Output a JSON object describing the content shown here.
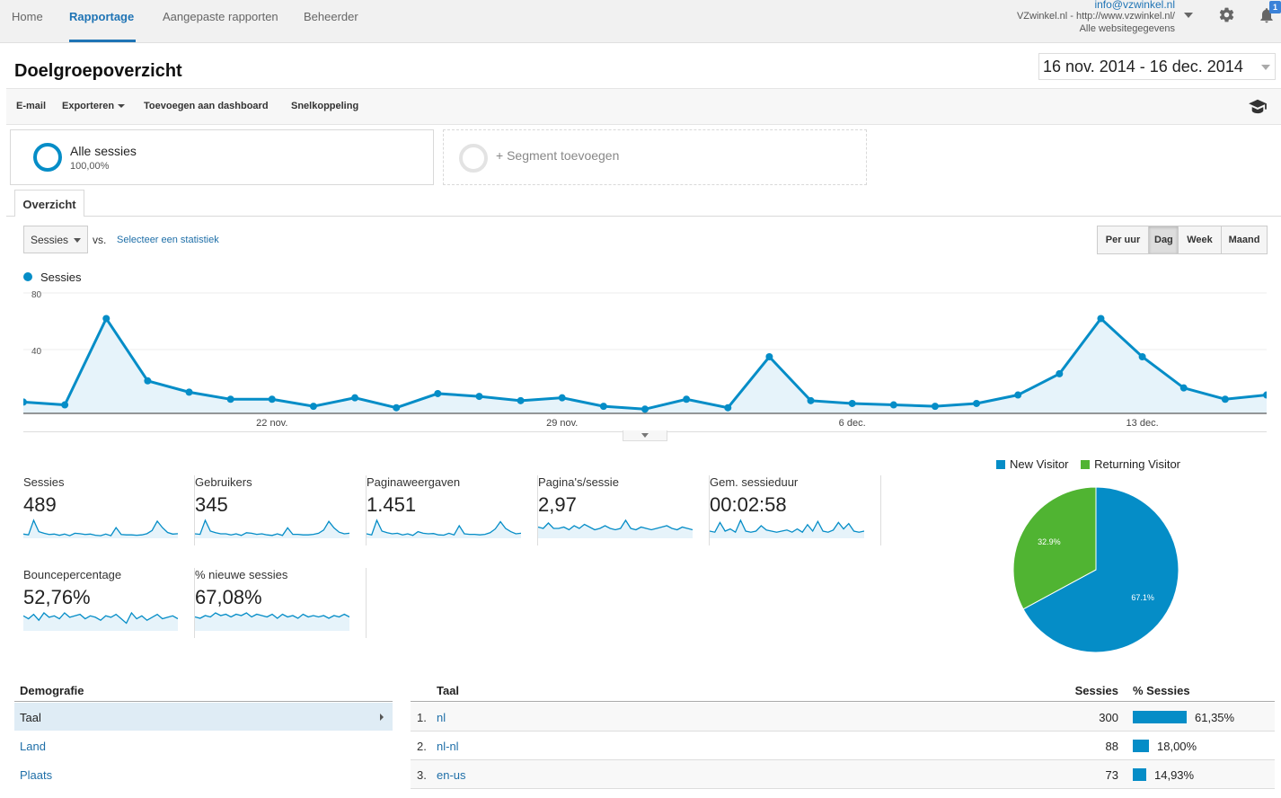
{
  "nav": {
    "items": [
      "Home",
      "Rapportage",
      "Aangepaste rapporten",
      "Beheerder"
    ],
    "active": "Rapportage"
  },
  "account": {
    "email": "info@vzwinkel.nl",
    "site": "VZwinkel.nl - http://www.vzwinkel.nl/",
    "view": "Alle websitegegevens",
    "notification_count": "1"
  },
  "page": {
    "title": "Doelgroepoverzicht",
    "date_range": "16 nov. 2014 - 16 dec. 2014"
  },
  "actions": {
    "email": "E-mail",
    "export": "Exporteren",
    "add_dashboard": "Toevoegen aan dashboard",
    "shortcut": "Snelkoppeling"
  },
  "segments": {
    "all_label": "Alle sessies",
    "all_pct": "100,00%",
    "add_label": "+ Segment toevoegen"
  },
  "tab": {
    "overview": "Overzicht"
  },
  "controls": {
    "metric": "Sessies",
    "vs": "vs.",
    "select_stat": "Selecteer een statistiek",
    "granularity": [
      "Per uur",
      "Dag",
      "Week",
      "Maand"
    ],
    "granularity_selected": "Dag"
  },
  "chart_data": [
    {
      "type": "line",
      "series": [
        {
          "name": "Sessies",
          "values": [
            8,
            6,
            67,
            23,
            15,
            10,
            10,
            5,
            11,
            4,
            14,
            12,
            9,
            11,
            5,
            3,
            10,
            4,
            40,
            9,
            7,
            6,
            5,
            7,
            13,
            28,
            67,
            40,
            18,
            10,
            13
          ]
        }
      ],
      "x_labels": [
        "22 nov.",
        "29 nov.",
        "6 dec.",
        "13 dec."
      ],
      "y_ticks": [
        "40",
        "80"
      ],
      "ylim": [
        0,
        80
      ],
      "color": "#058dc7",
      "legend": "top-left",
      "grid": true
    },
    {
      "type": "pie",
      "labels": [
        "New Visitor",
        "Returning Visitor"
      ],
      "values": [
        67.1,
        32.9
      ],
      "value_labels": [
        "67.1%",
        "32.9%"
      ],
      "colors": [
        "#058dc7",
        "#50b432"
      ],
      "legend": "top"
    }
  ],
  "metrics": [
    {
      "label": "Sessies",
      "value": "489",
      "spark": [
        6,
        4,
        40,
        12,
        8,
        5,
        6,
        3,
        6,
        2,
        8,
        7,
        5,
        6,
        3,
        2,
        6,
        2,
        22,
        5,
        4,
        4,
        3,
        4,
        7,
        15,
        38,
        22,
        10,
        6,
        7
      ]
    },
    {
      "label": "Gebruikers",
      "value": "345",
      "spark": [
        5,
        4,
        30,
        10,
        7,
        5,
        5,
        3,
        5,
        2,
        7,
        6,
        4,
        5,
        3,
        2,
        5,
        2,
        16,
        4,
        4,
        3,
        3,
        4,
        6,
        12,
        28,
        16,
        8,
        5,
        6
      ]
    },
    {
      "label": "Paginaweergaven",
      "value": "1.451",
      "spark": [
        10,
        6,
        60,
        20,
        14,
        10,
        12,
        6,
        10,
        4,
        18,
        12,
        10,
        11,
        6,
        5,
        12,
        6,
        40,
        10,
        8,
        8,
        6,
        8,
        14,
        28,
        55,
        30,
        18,
        10,
        12
      ]
    },
    {
      "label": "Pagina's/sessie",
      "value": "2,97",
      "spark": [
        14,
        12,
        20,
        12,
        12,
        14,
        10,
        16,
        12,
        18,
        14,
        10,
        12,
        16,
        12,
        10,
        12,
        24,
        12,
        10,
        14,
        12,
        10,
        12,
        14,
        16,
        12,
        10,
        14,
        12,
        10
      ]
    },
    {
      "label": "Gem. sessieduur",
      "value": "00:02:58",
      "spark": [
        10,
        8,
        26,
        10,
        14,
        8,
        30,
        10,
        8,
        10,
        20,
        12,
        10,
        8,
        10,
        12,
        8,
        14,
        8,
        22,
        10,
        28,
        10,
        8,
        12,
        26,
        14,
        24,
        10,
        8,
        10
      ]
    },
    {
      "label": "Bouncepercentage",
      "value": "52,76%",
      "spark": [
        18,
        14,
        20,
        12,
        22,
        16,
        18,
        14,
        22,
        16,
        18,
        20,
        14,
        18,
        16,
        12,
        18,
        16,
        20,
        14,
        8,
        22,
        14,
        18,
        12,
        16,
        20,
        14,
        16,
        18,
        14
      ]
    },
    {
      "label": "% nieuwe sessies",
      "value": "67,08%",
      "spark": [
        18,
        16,
        20,
        18,
        24,
        20,
        22,
        18,
        22,
        20,
        24,
        18,
        22,
        20,
        18,
        22,
        16,
        22,
        18,
        20,
        16,
        22,
        18,
        20,
        18,
        20,
        16,
        20,
        18,
        22,
        18
      ]
    }
  ],
  "pie_legend": {
    "new": "New Visitor",
    "returning": "Returning Visitor"
  },
  "demographics": {
    "header": "Demografie",
    "items": [
      "Taal",
      "Land",
      "Plaats"
    ],
    "selected": "Taal"
  },
  "table": {
    "headers": {
      "dimension": "Taal",
      "sessions": "Sessies",
      "pct": "% Sessies"
    },
    "rows": [
      {
        "idx": "1.",
        "lang": "nl",
        "sessions": "300",
        "pct": "61,35%",
        "share": 0.6135
      },
      {
        "idx": "2.",
        "lang": "nl-nl",
        "sessions": "88",
        "pct": "18,00%",
        "share": 0.18
      },
      {
        "idx": "3.",
        "lang": "en-us",
        "sessions": "73",
        "pct": "14,93%",
        "share": 0.1493
      }
    ]
  },
  "icons": {
    "settings": "gear-icon",
    "notifications": "bell-icon",
    "help": "graduation-cap-icon",
    "caret": "chevron-down-icon"
  }
}
